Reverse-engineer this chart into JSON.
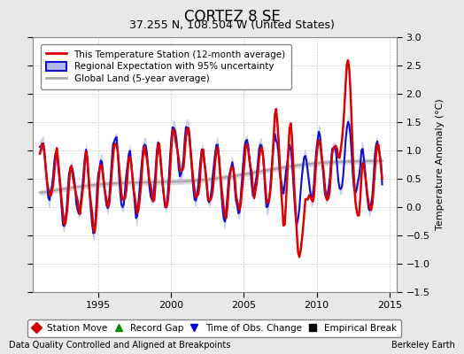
{
  "title": "CORTEZ 8 SE",
  "subtitle": "37.255 N, 108.504 W (United States)",
  "ylabel": "Temperature Anomaly (°C)",
  "footnote_left": "Data Quality Controlled and Aligned at Breakpoints",
  "footnote_right": "Berkeley Earth",
  "xlim": [
    1990.5,
    2015.5
  ],
  "ylim": [
    -1.5,
    3.0
  ],
  "yticks": [
    -1.5,
    -1.0,
    -0.5,
    0.0,
    0.5,
    1.0,
    1.5,
    2.0,
    2.5,
    3.0
  ],
  "xticks": [
    1995,
    2000,
    2005,
    2010,
    2015
  ],
  "bg_color": "#e8e8e8",
  "plot_bg_color": "#ffffff",
  "red_color": "#dd0000",
  "blue_color": "#1010cc",
  "blue_fill_color": "#b0b8ee",
  "gray_color": "#aaaaaa",
  "gray_fill_color": "#cccccc",
  "legend_entries": [
    "This Temperature Station (12-month average)",
    "Regional Expectation with 95% uncertainty",
    "Global Land (5-year average)"
  ],
  "marker_legend": [
    {
      "marker": "D",
      "color": "#cc0000",
      "label": "Station Move"
    },
    {
      "marker": "^",
      "color": "#008800",
      "label": "Record Gap"
    },
    {
      "marker": "v",
      "color": "#0000cc",
      "label": "Time of Obs. Change"
    },
    {
      "marker": "s",
      "color": "#000000",
      "label": "Empirical Break"
    }
  ]
}
